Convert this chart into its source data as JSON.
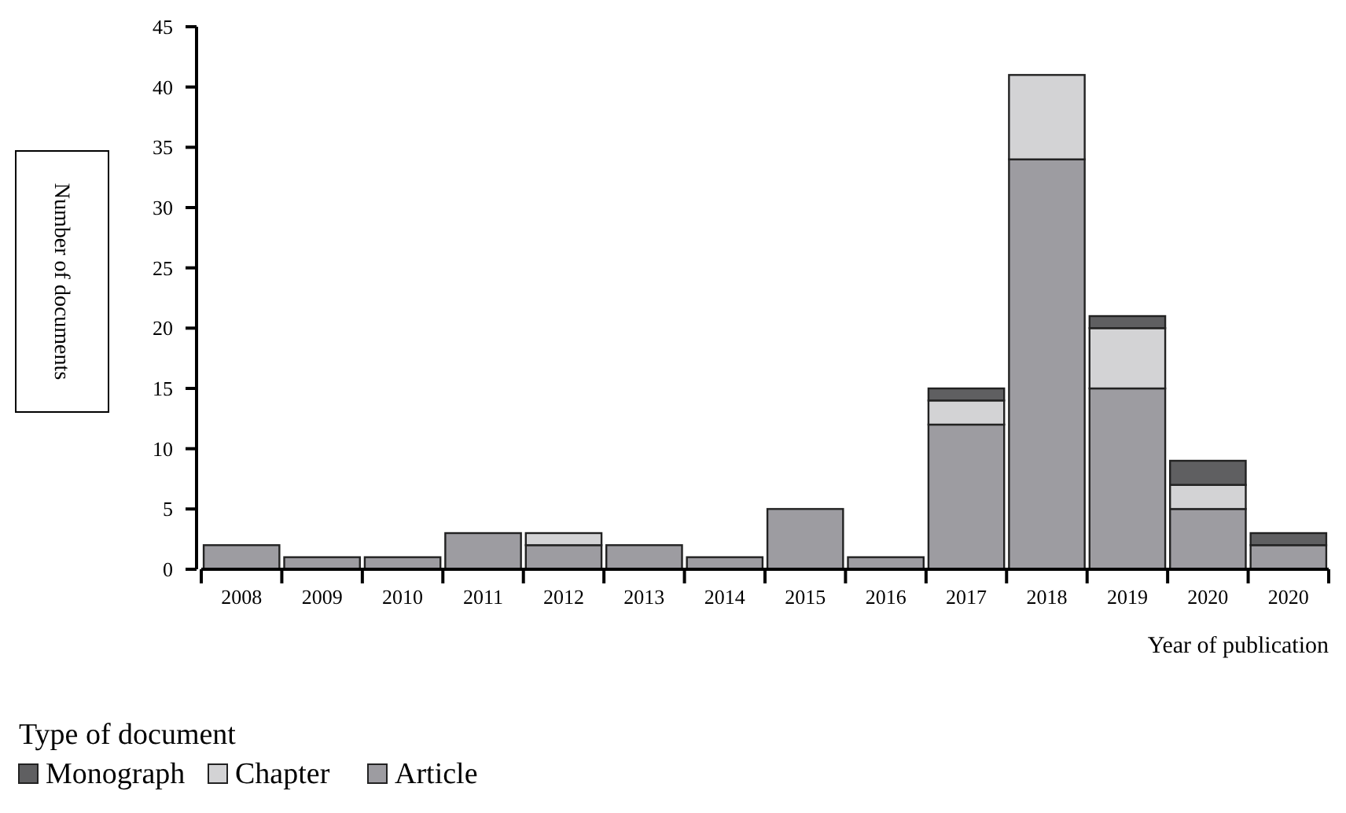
{
  "chart_data": {
    "type": "bar",
    "stacked": true,
    "categories": [
      "2008",
      "2009",
      "2010",
      "2011",
      "2012",
      "2013",
      "2014",
      "2015",
      "2016",
      "2017",
      "2018",
      "2019",
      "2020",
      "2020"
    ],
    "series": [
      {
        "name": "Article",
        "color": "#9d9ca1",
        "values": [
          2,
          1,
          1,
          3,
          2,
          2,
          1,
          5,
          1,
          12,
          34,
          15,
          5,
          2
        ]
      },
      {
        "name": "Chapter",
        "color": "#d3d3d5",
        "values": [
          0,
          0,
          0,
          0,
          1,
          0,
          0,
          0,
          0,
          2,
          7,
          5,
          2,
          0
        ]
      },
      {
        "name": "Monograph",
        "color": "#5f5f61",
        "values": [
          0,
          0,
          0,
          0,
          0,
          0,
          0,
          0,
          0,
          1,
          0,
          1,
          2,
          1
        ]
      }
    ],
    "ylim": [
      0,
      45
    ],
    "yticks": [
      0,
      5,
      10,
      15,
      20,
      25,
      30,
      35,
      40,
      45
    ],
    "ylabel": "Number of documents",
    "xlabel": "Year of publication",
    "legend_title": "Type of document",
    "legend": "bottom left",
    "grid": false
  }
}
